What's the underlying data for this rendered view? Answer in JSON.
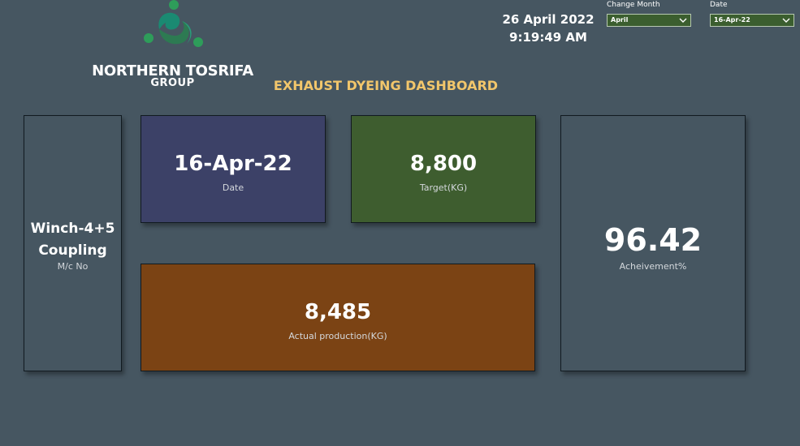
{
  "logo": {
    "company_name": "NORTHERN TOSRIFA",
    "company_sub": "GROUP",
    "colors": {
      "green": "#2e9d5a",
      "teal": "#1a8a72",
      "dark": "#2d6e3e"
    }
  },
  "header": {
    "title": "EXHAUST DYEING DASHBOARD",
    "current_date": "26 April 2022",
    "current_time": "9:19:49 AM"
  },
  "filters": {
    "month": {
      "label": "Change Month",
      "value": "April"
    },
    "date": {
      "label": "Date",
      "value": "16-Apr-22"
    }
  },
  "cards": {
    "machine": {
      "value": "Winch-4+5 Coupling",
      "label": "M/c No",
      "color": "#465661"
    },
    "date": {
      "value": "16-Apr-22",
      "label": "Date",
      "color": "#3c4167"
    },
    "target": {
      "value": "8,800",
      "label": "Target(KG)",
      "color": "#3e5d2f"
    },
    "actual": {
      "value": "8,485",
      "label": "Actual production(KG)",
      "color": "#7b4314"
    },
    "achievement": {
      "value": "96.42",
      "label": "Acheivement%",
      "color": "#465661"
    }
  }
}
